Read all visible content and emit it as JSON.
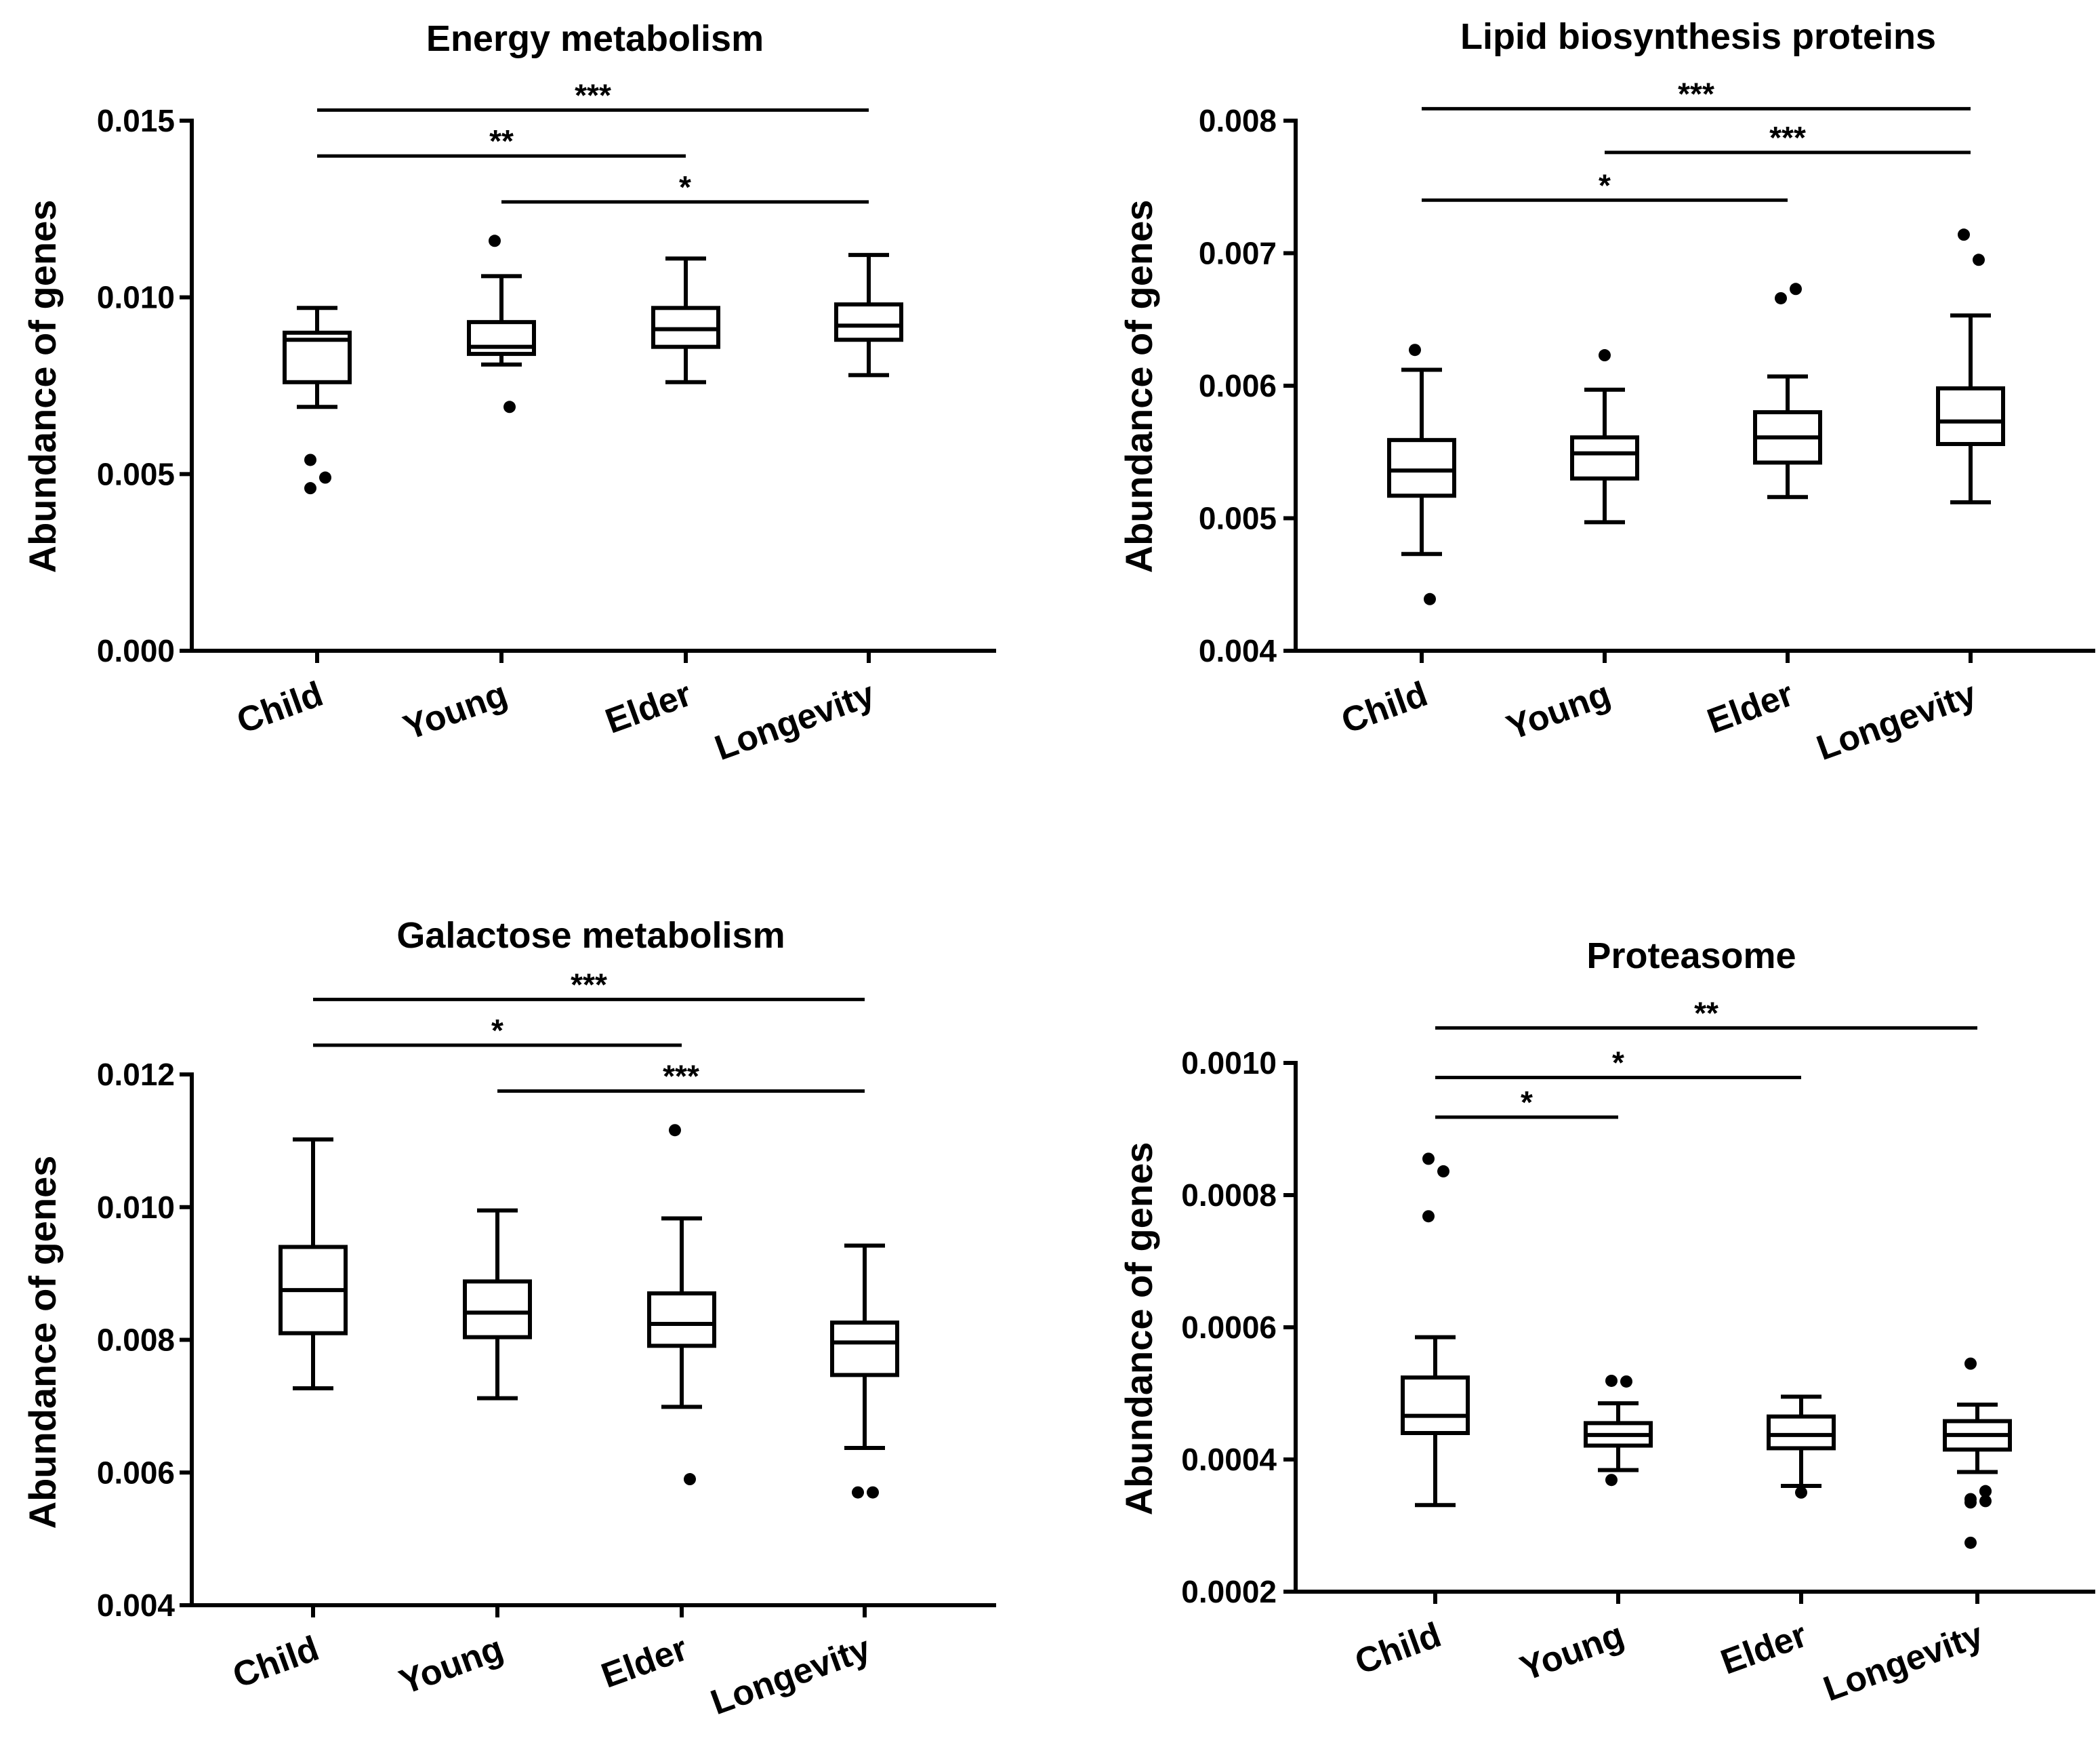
{
  "chart_data": [
    {
      "type": "box",
      "title": "Energy metabolism",
      "ylabel": "Abundance of genes",
      "xlabel": "",
      "categories": [
        "Child",
        "Young",
        "Elder",
        "Longevity"
      ],
      "ylim": [
        0,
        0.015
      ],
      "yticks": [
        0.0,
        0.005,
        0.01,
        0.015
      ],
      "ytick_labels": [
        "0.000",
        "0.005",
        "0.010",
        "0.015"
      ],
      "boxes": [
        {
          "whisker_low": 0.0069,
          "q1": 0.0076,
          "median": 0.0088,
          "q3": 0.009,
          "whisker_high": 0.0097,
          "outliers": [
            0.0054,
            0.0049,
            0.0046
          ]
        },
        {
          "whisker_low": 0.0081,
          "q1": 0.0084,
          "median": 0.0086,
          "q3": 0.0093,
          "whisker_high": 0.0106,
          "outliers": [
            0.0116,
            0.0069
          ]
        },
        {
          "whisker_low": 0.0076,
          "q1": 0.0086,
          "median": 0.0091,
          "q3": 0.0097,
          "whisker_high": 0.0111,
          "outliers": []
        },
        {
          "whisker_low": 0.0078,
          "q1": 0.0088,
          "median": 0.0092,
          "q3": 0.0098,
          "whisker_high": 0.0112,
          "outliers": []
        }
      ],
      "significance": [
        {
          "from": "Child",
          "to": "Longevity",
          "label": "***",
          "level": 0.0153
        },
        {
          "from": "Child",
          "to": "Elder",
          "label": "**",
          "level": 0.014
        },
        {
          "from": "Young",
          "to": "Longevity",
          "label": "*",
          "level": 0.0127
        }
      ]
    },
    {
      "type": "box",
      "title": "Lipid biosynthesis proteins",
      "ylabel": "Abundance of genes",
      "xlabel": "",
      "categories": [
        "Child",
        "Young",
        "Elder",
        "Longevity"
      ],
      "ylim": [
        0.004,
        0.008
      ],
      "yticks": [
        0.004,
        0.005,
        0.006,
        0.007,
        0.008
      ],
      "ytick_labels": [
        "0.004",
        "0.005",
        "0.006",
        "0.007",
        "0.008"
      ],
      "boxes": [
        {
          "whisker_low": 0.00473,
          "q1": 0.00517,
          "median": 0.00536,
          "q3": 0.00559,
          "whisker_high": 0.00612,
          "outliers": [
            0.00627,
            0.00439
          ]
        },
        {
          "whisker_low": 0.00497,
          "q1": 0.0053,
          "median": 0.00549,
          "q3": 0.00561,
          "whisker_high": 0.00597,
          "outliers": [
            0.00623
          ]
        },
        {
          "whisker_low": 0.00516,
          "q1": 0.00542,
          "median": 0.00561,
          "q3": 0.0058,
          "whisker_high": 0.00607,
          "outliers": [
            0.00666,
            0.00673
          ]
        },
        {
          "whisker_low": 0.00512,
          "q1": 0.00556,
          "median": 0.00573,
          "q3": 0.00598,
          "whisker_high": 0.00653,
          "outliers": [
            0.00714,
            0.00695
          ]
        }
      ],
      "significance": [
        {
          "from": "Child",
          "to": "Longevity",
          "label": "***",
          "level": 0.00809
        },
        {
          "from": "Young",
          "to": "Longevity",
          "label": "***",
          "level": 0.00776
        },
        {
          "from": "Child",
          "to": "Elder",
          "label": "*",
          "level": 0.0074
        }
      ]
    },
    {
      "type": "box",
      "title": "Galactose metabolism",
      "ylabel": "Abundance of genes",
      "xlabel": "",
      "categories": [
        "Child",
        "Young",
        "Elder",
        "Longevity"
      ],
      "ylim": [
        0.004,
        0.012
      ],
      "yticks": [
        0.004,
        0.006,
        0.008,
        0.01,
        0.012
      ],
      "ytick_labels": [
        "0.004",
        "0.006",
        "0.008",
        "0.010",
        "0.012"
      ],
      "boxes": [
        {
          "whisker_low": 0.00727,
          "q1": 0.0081,
          "median": 0.00875,
          "q3": 0.0094,
          "whisker_high": 0.01102,
          "outliers": []
        },
        {
          "whisker_low": 0.00712,
          "q1": 0.00804,
          "median": 0.00841,
          "q3": 0.00888,
          "whisker_high": 0.00995,
          "outliers": []
        },
        {
          "whisker_low": 0.00699,
          "q1": 0.00791,
          "median": 0.00824,
          "q3": 0.0087,
          "whisker_high": 0.00983,
          "outliers": [
            0.01116,
            0.0059
          ]
        },
        {
          "whisker_low": 0.00637,
          "q1": 0.00747,
          "median": 0.00796,
          "q3": 0.00826,
          "whisker_high": 0.00942,
          "outliers": [
            0.0057,
            0.0057
          ]
        }
      ],
      "significance": [
        {
          "from": "Child",
          "to": "Longevity",
          "label": "***",
          "level": 0.01313
        },
        {
          "from": "Child",
          "to": "Elder",
          "label": "*",
          "level": 0.01244
        },
        {
          "from": "Young",
          "to": "Longevity",
          "label": "***",
          "level": 0.01175
        }
      ]
    },
    {
      "type": "box",
      "title": "Proteasome",
      "ylabel": "Abundance of genes",
      "xlabel": "",
      "categories": [
        "Child",
        "Young",
        "Elder",
        "Longevity"
      ],
      "ylim": [
        0.0002,
        0.001
      ],
      "yticks": [
        0.0002,
        0.0004,
        0.0006,
        0.0008,
        0.001
      ],
      "ytick_labels": [
        "0.0002",
        "0.0004",
        "0.0006",
        "0.0008",
        "0.0010"
      ],
      "boxes": [
        {
          "whisker_low": 0.000331,
          "q1": 0.00044,
          "median": 0.000466,
          "q3": 0.000524,
          "whisker_high": 0.000585,
          "outliers": [
            0.000855,
            0.000836,
            0.000768
          ]
        },
        {
          "whisker_low": 0.000384,
          "q1": 0.000421,
          "median": 0.000437,
          "q3": 0.000455,
          "whisker_high": 0.000485,
          "outliers": [
            0.000519,
            0.000518,
            0.000369
          ]
        },
        {
          "whisker_low": 0.00036,
          "q1": 0.000417,
          "median": 0.000437,
          "q3": 0.000465,
          "whisker_high": 0.000495,
          "outliers": [
            0.00035
          ]
        },
        {
          "whisker_low": 0.000381,
          "q1": 0.000415,
          "median": 0.000437,
          "q3": 0.000458,
          "whisker_high": 0.000483,
          "outliers": [
            0.000545,
            0.000352,
            0.00034,
            0.000352,
            0.000335,
            0.000337,
            0.000274
          ]
        }
      ],
      "significance": [
        {
          "from": "Child",
          "to": "Longevity",
          "label": "**",
          "level": 0.001053
        },
        {
          "from": "Child",
          "to": "Elder",
          "label": "*",
          "level": 0.000978
        },
        {
          "from": "Child",
          "to": "Young",
          "label": "*",
          "level": 0.000918
        }
      ]
    }
  ]
}
